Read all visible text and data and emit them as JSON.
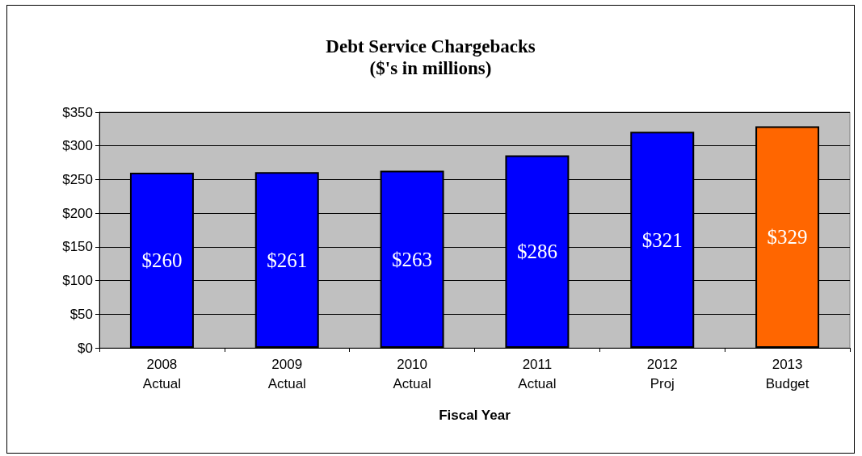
{
  "chart_data": {
    "type": "bar",
    "title": "Debt Service Chargebacks",
    "subtitle": "($'s in millions)",
    "xlabel": "Fiscal Year",
    "categories": [
      "2008\nActual",
      "2009\nActual",
      "2010\nActual",
      "2011\nActual",
      "2012\nProj",
      "2013\nBudget"
    ],
    "values": [
      260,
      261,
      263,
      286,
      321,
      329
    ],
    "colors": [
      "#0000ff",
      "#0000ff",
      "#0000ff",
      "#0000ff",
      "#0000ff",
      "#ff6600"
    ],
    "value_labels": [
      "$260",
      "$261",
      "$263",
      "$286",
      "$321",
      "$329"
    ],
    "ylim": [
      0,
      350
    ],
    "yticks": [
      {
        "value": 0,
        "label": "$0"
      },
      {
        "value": 50,
        "label": "$50"
      },
      {
        "value": 100,
        "label": "$100"
      },
      {
        "value": 150,
        "label": "$150"
      },
      {
        "value": 200,
        "label": "$200"
      },
      {
        "value": 250,
        "label": "$250"
      },
      {
        "value": 300,
        "label": "$300"
      },
      {
        "value": 350,
        "label": "$350"
      }
    ],
    "grid": "y"
  }
}
